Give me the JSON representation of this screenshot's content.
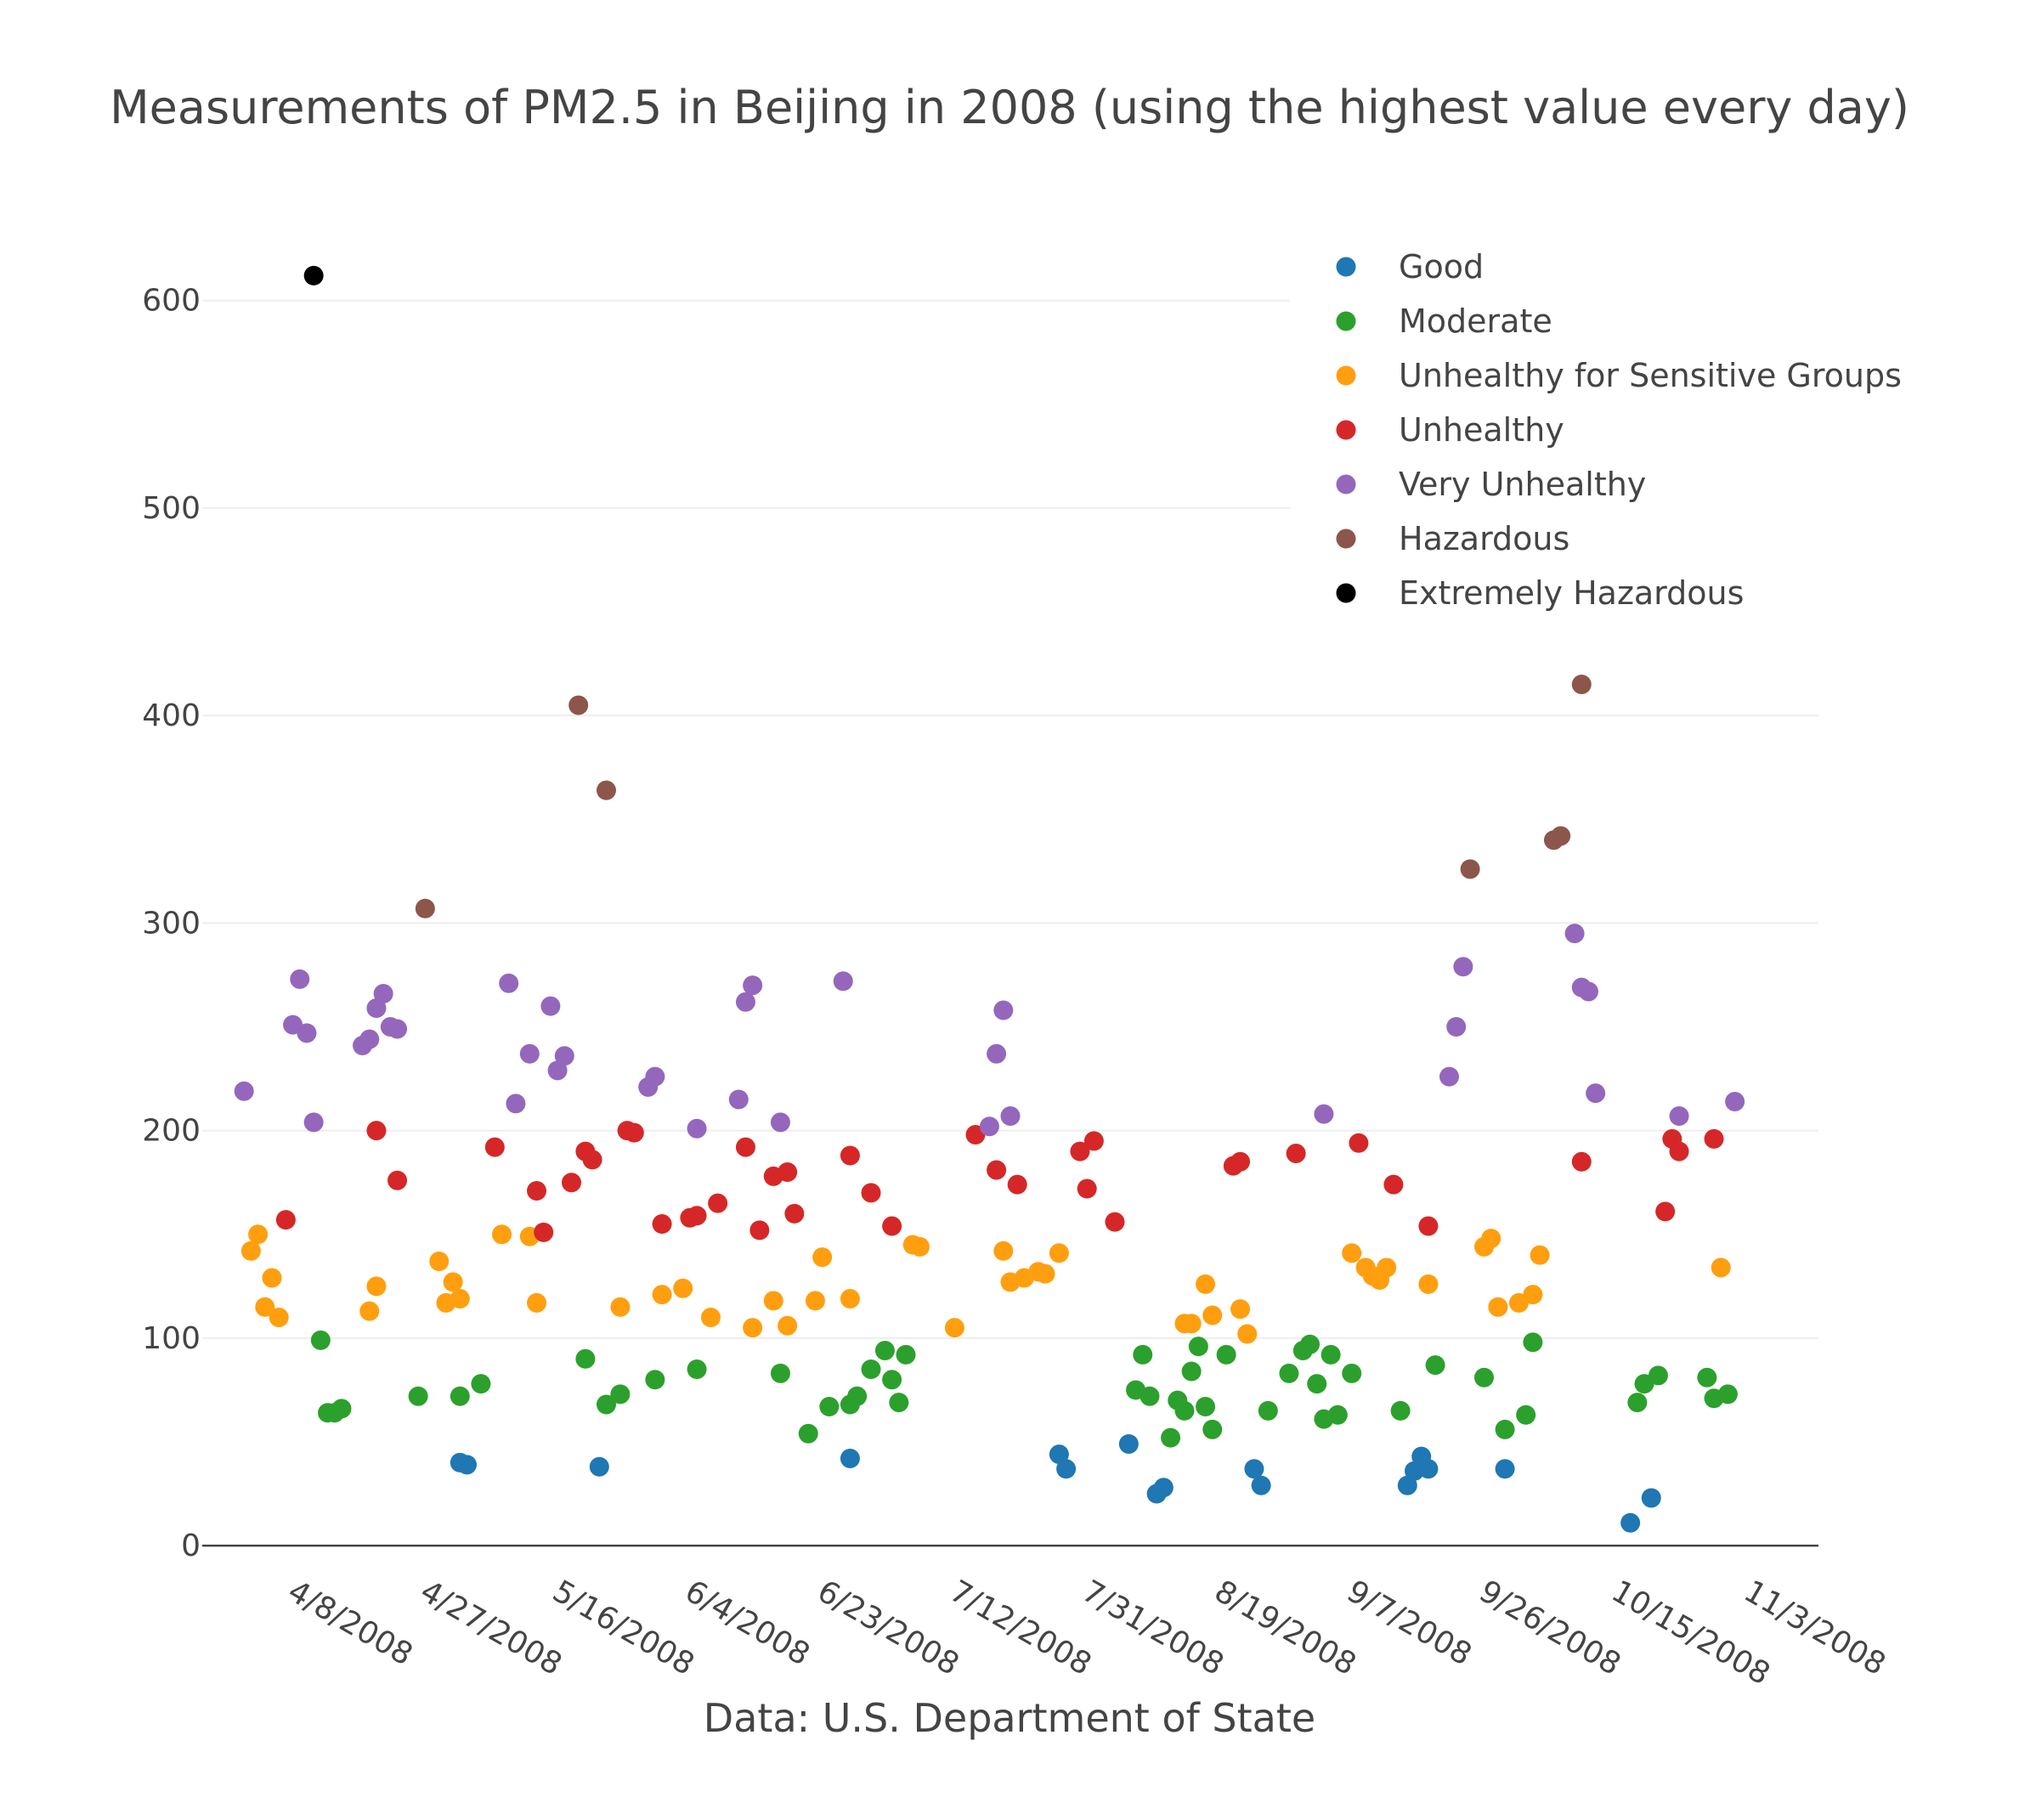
{
  "chart_data": {
    "type": "scatter",
    "title": "Measurements of PM2.5 in Beijing in 2008 (using the highest value every day)",
    "xlabel": "Data: U.S. Department of State",
    "ylabel": "",
    "x_tick_labels": [
      "4/8/2008",
      "4/27/2008",
      "5/16/2008",
      "6/4/2008",
      "6/23/2008",
      "7/12/2008",
      "7/31/2008",
      "8/19/2008",
      "9/7/2008",
      "9/26/2008",
      "10/15/2008",
      "11/3/2008"
    ],
    "x_tick_dates": [
      "2008-04-08",
      "2008-04-27",
      "2008-05-16",
      "2008-06-04",
      "2008-06-23",
      "2008-07-12",
      "2008-07-31",
      "2008-08-19",
      "2008-09-07",
      "2008-09-26",
      "2008-10-15",
      "2008-11-03"
    ],
    "xlim": [
      "2008-03-27",
      "2008-11-14"
    ],
    "y_ticks": [
      0,
      100,
      200,
      300,
      400,
      500,
      600
    ],
    "ylim": [
      -2,
      640
    ],
    "grid": true,
    "legend_position": "top-right",
    "series": [
      {
        "name": "Good",
        "color": "#1f77b4",
        "points": [
          [
            "2008-05-03",
            40
          ],
          [
            "2008-05-04",
            39
          ],
          [
            "2008-05-23",
            38
          ],
          [
            "2008-06-28",
            42
          ],
          [
            "2008-07-28",
            44
          ],
          [
            "2008-07-29",
            37
          ],
          [
            "2008-08-07",
            49
          ],
          [
            "2008-08-11",
            25
          ],
          [
            "2008-08-12",
            28
          ],
          [
            "2008-08-25",
            37
          ],
          [
            "2008-08-26",
            29
          ],
          [
            "2008-09-16",
            29
          ],
          [
            "2008-09-17",
            36
          ],
          [
            "2008-09-18",
            43
          ],
          [
            "2008-09-19",
            37
          ],
          [
            "2008-09-30",
            37
          ],
          [
            "2008-10-18",
            11
          ],
          [
            "2008-10-21",
            23
          ]
        ]
      },
      {
        "name": "Moderate",
        "color": "#2ca02c",
        "points": [
          [
            "2008-04-13",
            99
          ],
          [
            "2008-04-14",
            64
          ],
          [
            "2008-04-15",
            64
          ],
          [
            "2008-04-16",
            66
          ],
          [
            "2008-04-27",
            72
          ],
          [
            "2008-05-03",
            72
          ],
          [
            "2008-05-06",
            78
          ],
          [
            "2008-05-21",
            90
          ],
          [
            "2008-05-24",
            68
          ],
          [
            "2008-05-26",
            73
          ],
          [
            "2008-05-31",
            80
          ],
          [
            "2008-06-06",
            85
          ],
          [
            "2008-06-18",
            83
          ],
          [
            "2008-06-22",
            54
          ],
          [
            "2008-06-25",
            67
          ],
          [
            "2008-06-28",
            68
          ],
          [
            "2008-06-29",
            72
          ],
          [
            "2008-07-01",
            85
          ],
          [
            "2008-07-03",
            94
          ],
          [
            "2008-07-04",
            80
          ],
          [
            "2008-07-05",
            69
          ],
          [
            "2008-07-06",
            92
          ],
          [
            "2008-08-08",
            75
          ],
          [
            "2008-08-09",
            92
          ],
          [
            "2008-08-10",
            72
          ],
          [
            "2008-08-13",
            52
          ],
          [
            "2008-08-14",
            70
          ],
          [
            "2008-08-15",
            65
          ],
          [
            "2008-08-16",
            84
          ],
          [
            "2008-08-17",
            96
          ],
          [
            "2008-08-18",
            67
          ],
          [
            "2008-08-19",
            56
          ],
          [
            "2008-08-21",
            92
          ],
          [
            "2008-08-27",
            65
          ],
          [
            "2008-08-30",
            83
          ],
          [
            "2008-09-01",
            94
          ],
          [
            "2008-09-02",
            97
          ],
          [
            "2008-09-03",
            78
          ],
          [
            "2008-09-04",
            61
          ],
          [
            "2008-09-05",
            92
          ],
          [
            "2008-09-06",
            63
          ],
          [
            "2008-09-08",
            83
          ],
          [
            "2008-09-15",
            65
          ],
          [
            "2008-09-20",
            87
          ],
          [
            "2008-09-27",
            81
          ],
          [
            "2008-09-30",
            56
          ],
          [
            "2008-10-03",
            63
          ],
          [
            "2008-10-04",
            98
          ],
          [
            "2008-10-19",
            69
          ],
          [
            "2008-10-20",
            78
          ],
          [
            "2008-10-22",
            82
          ],
          [
            "2008-10-29",
            81
          ],
          [
            "2008-10-30",
            71
          ],
          [
            "2008-11-01",
            73
          ]
        ]
      },
      {
        "name": "Unhealthy for Sensitive Groups",
        "color": "#ff9f0f",
        "points": [
          [
            "2008-04-03",
            142
          ],
          [
            "2008-04-04",
            150
          ],
          [
            "2008-04-05",
            115
          ],
          [
            "2008-04-06",
            129
          ],
          [
            "2008-04-07",
            110
          ],
          [
            "2008-04-20",
            113
          ],
          [
            "2008-04-21",
            125
          ],
          [
            "2008-04-30",
            137
          ],
          [
            "2008-05-01",
            117
          ],
          [
            "2008-05-02",
            127
          ],
          [
            "2008-05-03",
            119
          ],
          [
            "2008-05-09",
            150
          ],
          [
            "2008-05-13",
            149
          ],
          [
            "2008-05-14",
            117
          ],
          [
            "2008-05-26",
            115
          ],
          [
            "2008-06-01",
            121
          ],
          [
            "2008-06-04",
            124
          ],
          [
            "2008-06-08",
            110
          ],
          [
            "2008-06-14",
            105
          ],
          [
            "2008-06-17",
            118
          ],
          [
            "2008-06-19",
            106
          ],
          [
            "2008-06-23",
            118
          ],
          [
            "2008-06-24",
            139
          ],
          [
            "2008-06-28",
            119
          ],
          [
            "2008-07-07",
            145
          ],
          [
            "2008-07-08",
            144
          ],
          [
            "2008-07-13",
            105
          ],
          [
            "2008-07-20",
            142
          ],
          [
            "2008-07-21",
            127
          ],
          [
            "2008-07-23",
            129
          ],
          [
            "2008-07-25",
            132
          ],
          [
            "2008-07-26",
            131
          ],
          [
            "2008-07-28",
            141
          ],
          [
            "2008-08-15",
            107
          ],
          [
            "2008-08-16",
            107
          ],
          [
            "2008-08-18",
            126
          ],
          [
            "2008-08-19",
            111
          ],
          [
            "2008-08-23",
            114
          ],
          [
            "2008-08-24",
            102
          ],
          [
            "2008-09-08",
            141
          ],
          [
            "2008-09-10",
            134
          ],
          [
            "2008-09-11",
            130
          ],
          [
            "2008-09-12",
            128
          ],
          [
            "2008-09-13",
            134
          ],
          [
            "2008-09-19",
            126
          ],
          [
            "2008-09-27",
            144
          ],
          [
            "2008-09-28",
            148
          ],
          [
            "2008-09-29",
            115
          ],
          [
            "2008-10-02",
            117
          ],
          [
            "2008-10-04",
            121
          ],
          [
            "2008-10-05",
            140
          ],
          [
            "2008-10-31",
            134
          ]
        ]
      },
      {
        "name": "Unhealthy",
        "color": "#d62728",
        "points": [
          [
            "2008-04-08",
            157
          ],
          [
            "2008-04-21",
            200
          ],
          [
            "2008-04-24",
            176
          ],
          [
            "2008-05-08",
            192
          ],
          [
            "2008-05-14",
            171
          ],
          [
            "2008-05-15",
            151
          ],
          [
            "2008-05-19",
            175
          ],
          [
            "2008-05-21",
            190
          ],
          [
            "2008-05-22",
            186
          ],
          [
            "2008-05-27",
            200
          ],
          [
            "2008-05-28",
            199
          ],
          [
            "2008-06-01",
            155
          ],
          [
            "2008-06-05",
            158
          ],
          [
            "2008-06-06",
            159
          ],
          [
            "2008-06-09",
            165
          ],
          [
            "2008-06-13",
            192
          ],
          [
            "2008-06-15",
            152
          ],
          [
            "2008-06-17",
            178
          ],
          [
            "2008-06-19",
            180
          ],
          [
            "2008-06-20",
            160
          ],
          [
            "2008-06-28",
            188
          ],
          [
            "2008-07-01",
            170
          ],
          [
            "2008-07-04",
            154
          ],
          [
            "2008-07-16",
            198
          ],
          [
            "2008-07-19",
            181
          ],
          [
            "2008-07-22",
            174
          ],
          [
            "2008-07-31",
            190
          ],
          [
            "2008-08-01",
            172
          ],
          [
            "2008-08-02",
            195
          ],
          [
            "2008-08-05",
            156
          ],
          [
            "2008-08-22",
            183
          ],
          [
            "2008-08-23",
            185
          ],
          [
            "2008-08-31",
            189
          ],
          [
            "2008-09-09",
            194
          ],
          [
            "2008-09-14",
            174
          ],
          [
            "2008-09-19",
            154
          ],
          [
            "2008-10-11",
            185
          ],
          [
            "2008-10-23",
            161
          ],
          [
            "2008-10-24",
            196
          ],
          [
            "2008-10-25",
            190
          ],
          [
            "2008-10-30",
            196
          ]
        ]
      },
      {
        "name": "Very Unhealthy",
        "color": "#9467bd",
        "points": [
          [
            "2008-04-02",
            219
          ],
          [
            "2008-04-09",
            251
          ],
          [
            "2008-04-10",
            273
          ],
          [
            "2008-04-11",
            247
          ],
          [
            "2008-04-12",
            204
          ],
          [
            "2008-04-19",
            241
          ],
          [
            "2008-04-20",
            244
          ],
          [
            "2008-04-21",
            259
          ],
          [
            "2008-04-22",
            266
          ],
          [
            "2008-04-23",
            250
          ],
          [
            "2008-04-24",
            249
          ],
          [
            "2008-05-10",
            271
          ],
          [
            "2008-05-11",
            213
          ],
          [
            "2008-05-13",
            237
          ],
          [
            "2008-05-16",
            260
          ],
          [
            "2008-05-17",
            229
          ],
          [
            "2008-05-18",
            236
          ],
          [
            "2008-05-30",
            221
          ],
          [
            "2008-05-31",
            226
          ],
          [
            "2008-06-06",
            201
          ],
          [
            "2008-06-12",
            215
          ],
          [
            "2008-06-13",
            262
          ],
          [
            "2008-06-14",
            270
          ],
          [
            "2008-06-18",
            204
          ],
          [
            "2008-06-27",
            272
          ],
          [
            "2008-07-18",
            202
          ],
          [
            "2008-07-19",
            237
          ],
          [
            "2008-07-20",
            258
          ],
          [
            "2008-07-21",
            207
          ],
          [
            "2008-09-04",
            208
          ],
          [
            "2008-09-22",
            226
          ],
          [
            "2008-09-23",
            250
          ],
          [
            "2008-09-24",
            279
          ],
          [
            "2008-10-10",
            295
          ],
          [
            "2008-10-11",
            269
          ],
          [
            "2008-10-12",
            267
          ],
          [
            "2008-10-13",
            218
          ],
          [
            "2008-10-25",
            207
          ],
          [
            "2008-11-02",
            214
          ]
        ]
      },
      {
        "name": "Hazardous",
        "color": "#8c564b",
        "points": [
          [
            "2008-04-28",
            307
          ],
          [
            "2008-05-20",
            405
          ],
          [
            "2008-05-24",
            364
          ],
          [
            "2008-09-25",
            326
          ],
          [
            "2008-10-07",
            340
          ],
          [
            "2008-10-08",
            342
          ],
          [
            "2008-10-11",
            415
          ]
        ]
      },
      {
        "name": "Extremely Hazardous",
        "color": "#000000",
        "points": [
          [
            "2008-04-12",
            612
          ]
        ]
      }
    ]
  }
}
